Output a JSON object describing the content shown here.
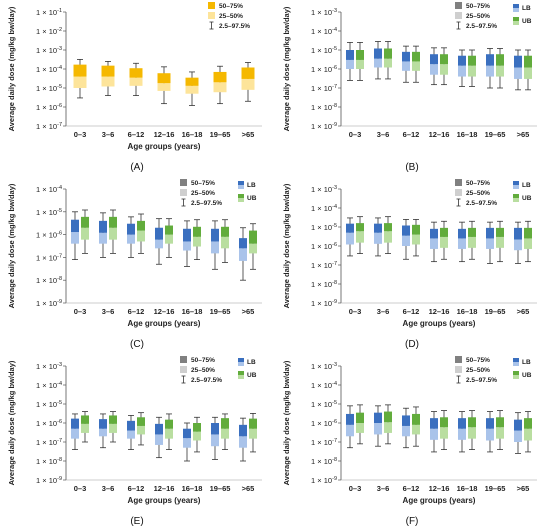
{
  "figure": {
    "panel_labels": [
      "(A)",
      "(B)",
      "(C)",
      "(D)",
      "(E)",
      "(F)"
    ]
  },
  "colors": {
    "q50_75_single": "#f5b800",
    "q25_50_single": "#fde49a",
    "lb_dark": "#3a6fbf",
    "lb_light": "#a9c3ea",
    "ub_dark": "#62ac3c",
    "ub_light": "#b9dea0",
    "legend_dark": "#808080",
    "legend_light": "#cfcfcf",
    "whisker": "#333333"
  },
  "chart_data": [
    {
      "type": "box",
      "panel": "(A)",
      "scale": "log",
      "ylim": [
        1e-07,
        0.1
      ],
      "ytick_exponents": [
        -7,
        -6,
        -5,
        -4,
        -3,
        -2,
        -1
      ],
      "ylabel": "Average daily dose (mg/kg bw/day)",
      "xlabel": "Age groups (years)",
      "categories": [
        "0–3",
        "3–6",
        "6–12",
        "12–16",
        "16–18",
        "19–65",
        ">65"
      ],
      "legend": {
        "items": [
          "50–75%",
          "25–50%",
          "2.5–97.5%"
        ],
        "series_items": []
      },
      "series": [
        {
          "name": "",
          "stats": [
            [
              3e-06,
              1e-05,
              4e-05,
              0.00017,
              0.00032
            ],
            [
              4e-06,
              1.2e-05,
              4e-05,
              0.00015,
              0.00025
            ],
            [
              4e-06,
              1.3e-05,
              3.5e-05,
              0.00011,
              0.0002
            ],
            [
              1.5e-06,
              7e-06,
              1.8e-05,
              6e-05,
              0.00013
            ],
            [
              1.2e-06,
              5e-06,
              1.3e-05,
              3.5e-05,
              7e-05
            ],
            [
              1.5e-06,
              6e-06,
              2e-05,
              7e-05,
              0.00014
            ],
            [
              2e-06,
              8e-06,
              3e-05,
              0.00012,
              0.00022
            ]
          ]
        }
      ]
    },
    {
      "type": "box",
      "panel": "(B)",
      "scale": "log",
      "ylim": [
        1e-09,
        0.001
      ],
      "ytick_exponents": [
        -9,
        -8,
        -7,
        -6,
        -5,
        -4,
        -3
      ],
      "ylabel": "Average daily dose (mg/kg bw/day)",
      "xlabel": "",
      "categories": [
        "0–3",
        "3–6",
        "6–12",
        "12–16",
        "16–18",
        "19–65",
        ">65"
      ],
      "legend": {
        "items": [
          "50–75%",
          "25–50%",
          "2.5–97.5%"
        ],
        "series_items": [
          "LB",
          "UB"
        ]
      },
      "series": [
        {
          "name": "LB",
          "stats": [
            [
              2.5e-07,
              1e-06,
              3e-06,
              1e-05,
              2.5e-05
            ],
            [
              3e-07,
              1.2e-06,
              3.5e-06,
              1.2e-05,
              2.8e-05
            ],
            [
              2e-07,
              8e-07,
              2.5e-06,
              8e-06,
              1.6e-05
            ],
            [
              1.5e-07,
              5e-07,
              1.8e-06,
              6e-06,
              1.3e-05
            ],
            [
              1.2e-07,
              4e-07,
              1.5e-06,
              5e-06,
              1e-05
            ],
            [
              1e-07,
              4e-07,
              1.5e-06,
              6e-06,
              1.2e-05
            ],
            [
              8e-08,
              3e-07,
              1.2e-06,
              5e-06,
              1e-05
            ]
          ]
        },
        {
          "name": "UB",
          "stats": [
            [
              2.5e-07,
              1e-06,
              3e-06,
              1e-05,
              2.5e-05
            ],
            [
              3e-07,
              1.2e-06,
              3.5e-06,
              1.2e-05,
              2.8e-05
            ],
            [
              2e-07,
              8e-07,
              2.5e-06,
              8e-06,
              1.6e-05
            ],
            [
              1.5e-07,
              5e-07,
              1.8e-06,
              6e-06,
              1.3e-05
            ],
            [
              1.2e-07,
              4e-07,
              1.5e-06,
              5e-06,
              1e-05
            ],
            [
              1e-07,
              4e-07,
              1.5e-06,
              6e-06,
              1.2e-05
            ],
            [
              8e-08,
              3e-07,
              1.2e-06,
              5e-06,
              1e-05
            ]
          ]
        }
      ]
    },
    {
      "type": "box",
      "panel": "(C)",
      "scale": "log",
      "ylim": [
        1e-09,
        0.0001
      ],
      "ytick_exponents": [
        -9,
        -8,
        -7,
        -6,
        -5,
        -4
      ],
      "ylabel": "Average daily dose (mg/kg bw/day)",
      "xlabel": "Age groups (years)",
      "categories": [
        "0–3",
        "3–6",
        "6–12",
        "12–16",
        "16–18",
        "19–65",
        ">65"
      ],
      "legend": {
        "items": [
          "50–75%",
          "25–50%",
          "2.5–97.5%"
        ],
        "series_items": [
          "LB",
          "UB"
        ]
      },
      "series": [
        {
          "name": "LB",
          "stats": [
            [
              8e-08,
              4e-07,
              1.3e-06,
              4.5e-06,
              1e-05
            ],
            [
              1e-07,
              4e-07,
              1.2e-06,
              4e-06,
              9e-06
            ],
            [
              1e-07,
              4e-07,
              1e-06,
              3e-06,
              6e-06
            ],
            [
              5e-08,
              2.5e-07,
              6e-07,
              2e-06,
              5e-06
            ],
            [
              4e-08,
              2e-07,
              5e-07,
              1.8e-06,
              4e-06
            ],
            [
              3e-08,
              1.5e-07,
              5e-07,
              1.8e-06,
              4e-06
            ],
            [
              1e-08,
              7e-08,
              2.5e-07,
              7e-07,
              2e-06
            ]
          ]
        },
        {
          "name": "UB",
          "stats": [
            [
              1.5e-07,
              6e-07,
              2e-06,
              6e-06,
              1.2e-05
            ],
            [
              1.5e-07,
              6e-07,
              2e-06,
              6e-06,
              1.2e-05
            ],
            [
              1.5e-07,
              5e-07,
              1.5e-06,
              4e-06,
              8e-06
            ],
            [
              1e-07,
              4e-07,
              1e-06,
              2.5e-06,
              5e-06
            ],
            [
              8e-08,
              3e-07,
              8e-07,
              2.2e-06,
              4.5e-06
            ],
            [
              6e-08,
              2.5e-07,
              8e-07,
              2.2e-06,
              4.5e-06
            ],
            [
              3e-08,
              1.5e-07,
              4e-07,
              1.5e-06,
              3e-06
            ]
          ]
        }
      ]
    },
    {
      "type": "box",
      "panel": "(D)",
      "scale": "log",
      "ylim": [
        1e-09,
        0.001
      ],
      "ytick_exponents": [
        -9,
        -8,
        -7,
        -6,
        -5,
        -4,
        -3
      ],
      "ylabel": "Average daily dose (mg/kg bw/day)",
      "xlabel": "Age groups (years)",
      "categories": [
        "0–3",
        "3–6",
        "6–12",
        "12–16",
        "16–18",
        "19–65",
        ">65"
      ],
      "legend": {
        "items": [
          "50–75%",
          "25–50%",
          "2.5–97.5%"
        ],
        "series_items": [
          "LB",
          "UB"
        ]
      },
      "series": [
        {
          "name": "LB",
          "stats": [
            [
              3e-07,
              1.2e-06,
              5e-06,
              1.5e-05,
              3e-05
            ],
            [
              3e-07,
              1.3e-06,
              5e-06,
              1.5e-05,
              3e-05
            ],
            [
              2e-07,
              1e-06,
              3.5e-06,
              1.2e-05,
              2.5e-05
            ],
            [
              1.5e-07,
              7e-07,
              2.5e-06,
              8e-06,
              1.8e-05
            ],
            [
              1.5e-07,
              7e-07,
              2.5e-06,
              8e-06,
              1.8e-05
            ],
            [
              1.2e-07,
              7e-07,
              2.5e-06,
              9e-06,
              1.8e-05
            ],
            [
              1.2e-07,
              6e-07,
              2.2e-06,
              9e-06,
              1.8e-05
            ]
          ]
        },
        {
          "name": "UB",
          "stats": [
            [
              4e-07,
              1.5e-06,
              6e-06,
              1.6e-05,
              3.5e-05
            ],
            [
              4e-07,
              1.5e-06,
              6e-06,
              1.6e-05,
              3.5e-05
            ],
            [
              3e-07,
              1.2e-06,
              4e-06,
              1.3e-05,
              2.5e-05
            ],
            [
              2e-07,
              8e-07,
              3e-06,
              9e-06,
              2e-05
            ],
            [
              2e-07,
              8e-07,
              3e-06,
              9e-06,
              2e-05
            ],
            [
              1.5e-07,
              8e-07,
              3e-06,
              9e-06,
              2e-05
            ],
            [
              1.5e-07,
              7e-07,
              2.5e-06,
              9e-06,
              2e-05
            ]
          ]
        }
      ]
    },
    {
      "type": "box",
      "panel": "(E)",
      "scale": "log",
      "ylim": [
        1e-09,
        0.001
      ],
      "ytick_exponents": [
        -9,
        -8,
        -7,
        -6,
        -5,
        -4,
        -3
      ],
      "ylabel": "Average daily dose (mg/kg bw/day)",
      "xlabel": "Age groups (years)",
      "categories": [
        "0–3",
        "3–6",
        "6–12",
        "12–16",
        "16–18",
        "19–65",
        ">65"
      ],
      "legend": {
        "items": [
          "50–75%",
          "25–50%",
          "2.5–97.5%"
        ],
        "series_items": [
          "LB",
          "UB"
        ]
      },
      "series": [
        {
          "name": "LB",
          "stats": [
            [
              4e-08,
              1.5e-07,
              5e-07,
              1.7e-06,
              3e-06
            ],
            [
              5e-08,
              2e-07,
              5e-07,
              1.6e-06,
              3e-06
            ],
            [
              4e-08,
              1.5e-07,
              4e-07,
              1.3e-06,
              2.5e-06
            ],
            [
              1.5e-08,
              7e-08,
              2.5e-07,
              9e-07,
              2e-06
            ],
            [
              1e-08,
              5e-08,
              1.6e-07,
              5e-07,
              1e-06
            ],
            [
              1.2e-08,
              6e-08,
              2.5e-07,
              1e-06,
              2e-06
            ],
            [
              1e-08,
              5e-08,
              2e-07,
              8e-07,
              1.8e-06
            ]
          ]
        },
        {
          "name": "UB",
          "stats": [
            [
              1e-07,
              3e-07,
              9e-07,
              2.5e-06,
              4e-06
            ],
            [
              1e-07,
              3e-07,
              9e-07,
              2.5e-06,
              4e-06
            ],
            [
              7e-08,
              2.5e-07,
              7e-07,
              2e-06,
              3.5e-06
            ],
            [
              4e-08,
              1.5e-07,
              5e-07,
              1.5e-06,
              3e-06
            ],
            [
              3e-08,
              1.2e-07,
              3.5e-07,
              1e-06,
              2e-06
            ],
            [
              4e-08,
              1.5e-07,
              5e-07,
              1.8e-06,
              3e-06
            ],
            [
              3e-08,
              1.5e-07,
              5e-07,
              1.7e-06,
              3.2e-06
            ]
          ]
        }
      ]
    },
    {
      "type": "box",
      "panel": "(F)",
      "scale": "log",
      "ylim": [
        1e-09,
        0.001
      ],
      "ytick_exponents": [
        -9,
        -8,
        -7,
        -6,
        -5,
        -4,
        -3
      ],
      "ylabel": "Average daily dose (mg/kg bw/day)",
      "xlabel": "Age groups (years)",
      "categories": [
        "0–3",
        "3–6",
        "6–12",
        "12–16",
        "16–18",
        "19–65",
        ">65"
      ],
      "legend": {
        "items": [
          "50–75%",
          "25–50%",
          "2.5–97.5%"
        ],
        "series_items": [
          "LB",
          "UB"
        ]
      },
      "series": [
        {
          "name": "LB",
          "stats": [
            [
              5e-08,
              2e-07,
              8e-07,
              3e-06,
              8e-06
            ],
            [
              6e-08,
              2.5e-07,
              1e-06,
              3.5e-06,
              8e-06
            ],
            [
              5e-08,
              2e-07,
              7e-07,
              2.5e-06,
              6e-06
            ],
            [
              3e-08,
              1.3e-07,
              5e-07,
              1.8e-06,
              4e-06
            ],
            [
              3e-08,
              1.3e-07,
              5e-07,
              1.8e-06,
              4e-06
            ],
            [
              3e-08,
              1.2e-07,
              5e-07,
              1.8e-06,
              4e-06
            ],
            [
              2.5e-08,
              1e-07,
              4e-07,
              1.5e-06,
              3.5e-06
            ]
          ]
        },
        {
          "name": "UB",
          "stats": [
            [
              8e-08,
              3e-07,
              1e-06,
              3.5e-06,
              9e-06
            ],
            [
              8e-08,
              3e-07,
              1.1e-06,
              4e-06,
              9e-06
            ],
            [
              6e-08,
              2.5e-07,
              8e-07,
              3e-06,
              7e-06
            ],
            [
              4e-08,
              1.5e-07,
              6e-07,
              2e-06,
              4.5e-06
            ],
            [
              4e-08,
              1.5e-07,
              6e-07,
              2e-06,
              4.5e-06
            ],
            [
              4e-08,
              1.5e-07,
              6e-07,
              2e-06,
              4.5e-06
            ],
            [
              3e-08,
              1.2e-07,
              5e-07,
              1.8e-06,
              4e-06
            ]
          ]
        }
      ]
    }
  ]
}
